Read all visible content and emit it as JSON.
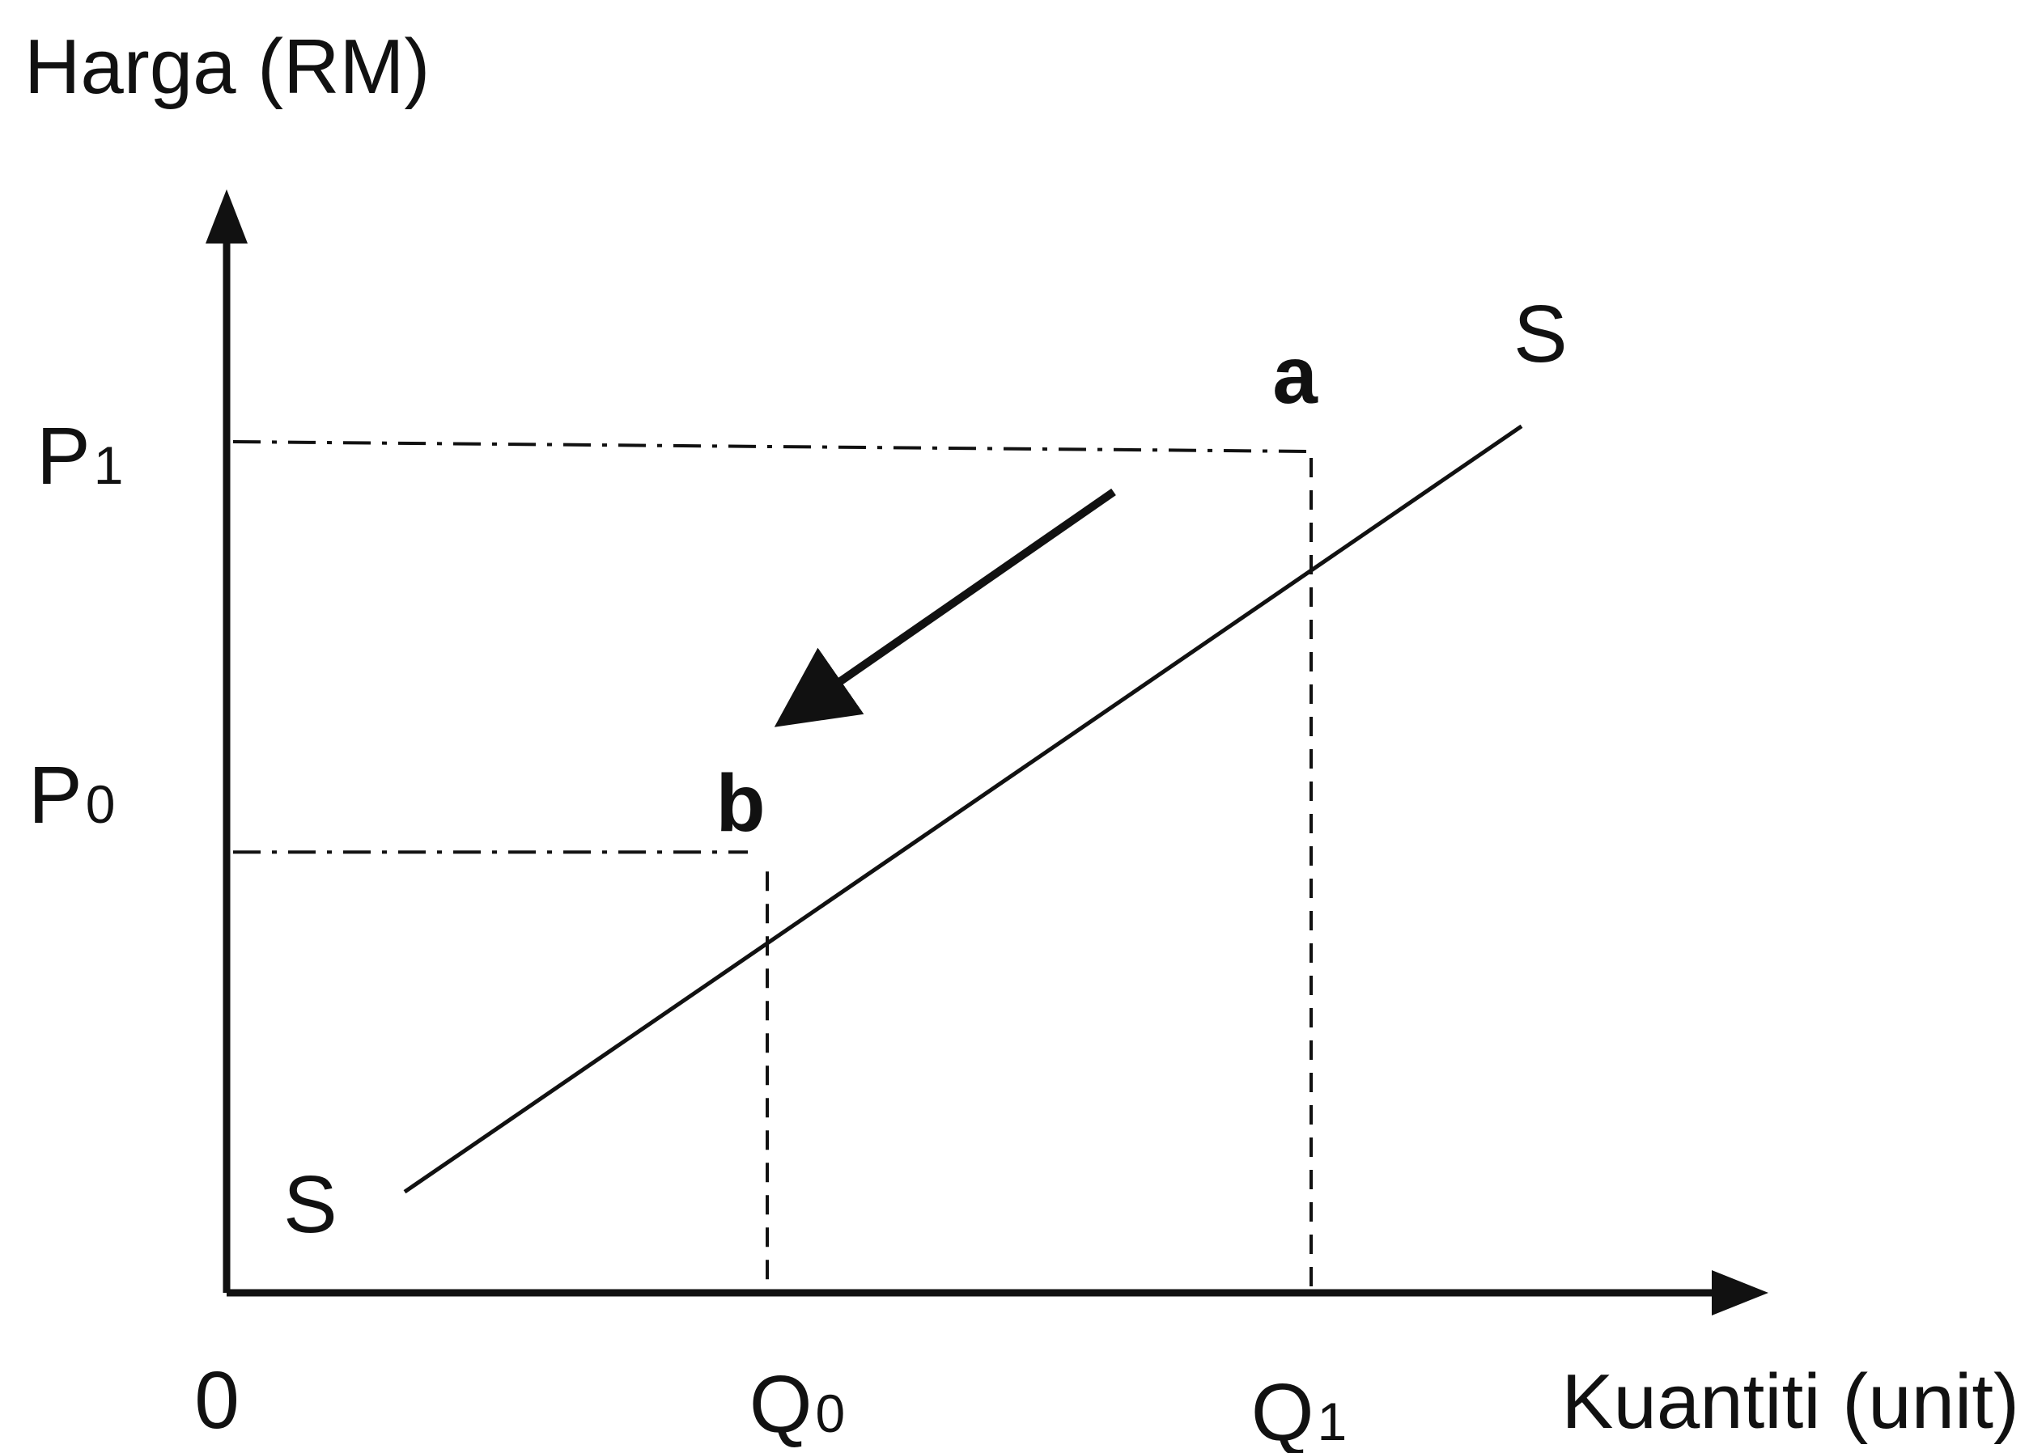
{
  "chart_data": {
    "type": "line",
    "title": "",
    "ylabel": "Harga (RM)",
    "xlabel": "Kuantiti (unit)",
    "origin_label": "0",
    "grid": false,
    "curve": {
      "name": "S",
      "start_label": "S",
      "end_label": "S",
      "points": [
        {
          "x": 0.22,
          "y": 0.12
        },
        {
          "x": 1.6,
          "y": 1.03
        }
      ]
    },
    "ticks": {
      "x": [
        {
          "base": "Q",
          "sub": "0",
          "value": 0.66
        },
        {
          "base": "Q",
          "sub": "1",
          "value": 1.34
        }
      ],
      "y": [
        {
          "base": "P",
          "sub": "0",
          "value": 0.52
        },
        {
          "base": "P",
          "sub": "1",
          "value": 1.0
        }
      ]
    },
    "points": [
      {
        "label": "a",
        "x": 1.34,
        "y": 1.0
      },
      {
        "label": "b",
        "x": 0.66,
        "y": 0.52
      }
    ],
    "movement": {
      "from": "a",
      "to": "b"
    },
    "xlim": [
      0,
      1.9
    ],
    "ylim": [
      0,
      1.3
    ]
  }
}
